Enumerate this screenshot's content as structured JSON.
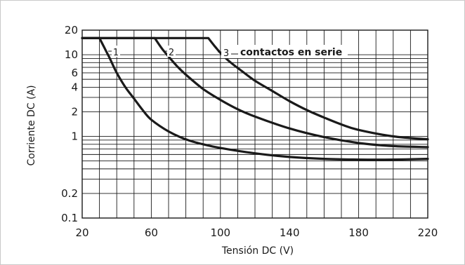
{
  "chart_data": {
    "type": "line",
    "title": "",
    "xlabel": "Tensión DC (V)",
    "ylabel": "Corriente DC (A)",
    "xlim": [
      20,
      220
    ],
    "ylim": [
      0.1,
      20
    ],
    "y_scale": "log",
    "grid": true,
    "x_ticks": [
      20,
      60,
      100,
      140,
      180,
      220
    ],
    "x_tick_labels": [
      "20",
      "60",
      "100",
      "140",
      "180",
      "220"
    ],
    "y_ticks": [
      0.1,
      0.2,
      1,
      2,
      4,
      6,
      10,
      20
    ],
    "y_tick_labels": [
      "0.1",
      "0.2",
      "1",
      "2",
      "4",
      "6",
      "10",
      "20"
    ],
    "series": [
      {
        "name": "1",
        "x": [
          20,
          30,
          33,
          36,
          40,
          45,
          50,
          55,
          60,
          70,
          80,
          90,
          100,
          120,
          140,
          160,
          180,
          200,
          220
        ],
        "y": [
          16,
          16,
          12,
          9,
          6,
          4,
          2.9,
          2.1,
          1.6,
          1.15,
          0.92,
          0.8,
          0.72,
          0.62,
          0.56,
          0.53,
          0.52,
          0.52,
          0.53
        ]
      },
      {
        "name": "2",
        "x": [
          20,
          62,
          66,
          70,
          75,
          80,
          90,
          100,
          110,
          120,
          140,
          160,
          180,
          200,
          220
        ],
        "y": [
          16,
          16,
          12,
          9.5,
          7.2,
          5.7,
          3.8,
          2.8,
          2.15,
          1.75,
          1.25,
          0.98,
          0.83,
          0.76,
          0.74
        ]
      },
      {
        "name": "3",
        "x": [
          20,
          93,
          97,
          101,
          106,
          112,
          120,
          130,
          140,
          150,
          160,
          170,
          180,
          200,
          220
        ],
        "y": [
          16,
          16,
          12.5,
          10,
          8,
          6.4,
          4.8,
          3.6,
          2.7,
          2.1,
          1.7,
          1.4,
          1.2,
          1.0,
          0.92
        ]
      }
    ],
    "annotations": {
      "label_1": "1",
      "label_2": "2",
      "label_3": "3",
      "series_caption": "contactos en serie"
    }
  },
  "colors": {
    "curve": "#1a1a1a",
    "grid": "#1a1a1a",
    "text": "#1a1a1a",
    "frame": "#c9c9c9"
  }
}
